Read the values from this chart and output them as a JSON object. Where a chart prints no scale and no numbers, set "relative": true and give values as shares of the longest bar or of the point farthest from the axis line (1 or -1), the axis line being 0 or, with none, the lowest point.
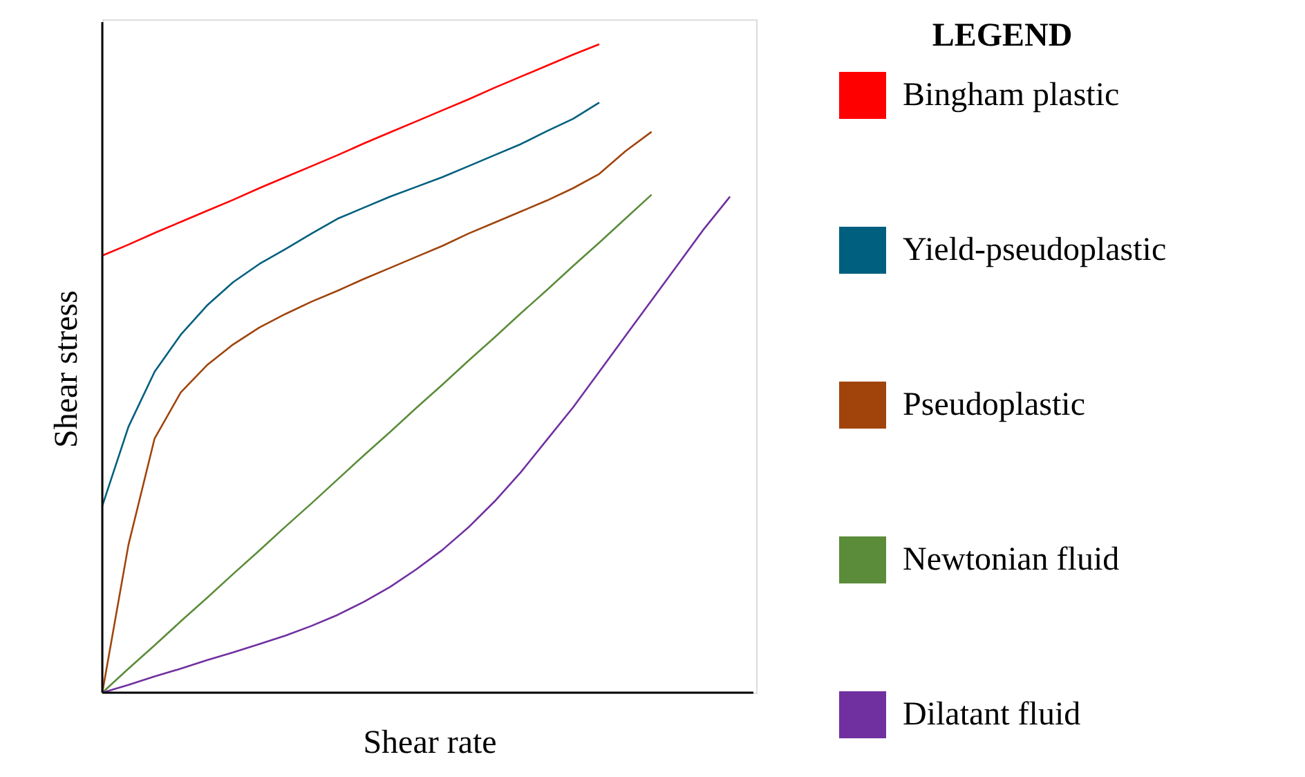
{
  "chart_data": {
    "type": "line",
    "relative": true,
    "xlabel": "Shear rate",
    "ylabel": "Shear stress",
    "legend_title": "LEGEND",
    "legend": "right",
    "grid": false,
    "marker": "none",
    "line_style": "solid",
    "categories": [
      null,
      null,
      null,
      null,
      null,
      null,
      null,
      null,
      null,
      null,
      null,
      null,
      null,
      null,
      null,
      null,
      null,
      null,
      null,
      null,
      null,
      null,
      null,
      null,
      null,
      null
    ],
    "series": [
      {
        "name": "Bingham plastic",
        "color": "#ff0000",
        "values": [
          0.674,
          0.691,
          0.709,
          0.726,
          0.743,
          0.76,
          0.778,
          0.795,
          0.812,
          0.829,
          0.847,
          0.864,
          0.881,
          0.898,
          0.915,
          0.933,
          0.95,
          0.967,
          0.984,
          1.0,
          null,
          null,
          null,
          null,
          null,
          null
        ]
      },
      {
        "name": "Yield-pseudoplastic",
        "color": "#005f7f",
        "values": [
          0.288,
          0.41,
          0.495,
          0.552,
          0.597,
          0.633,
          0.661,
          0.684,
          0.708,
          0.731,
          0.748,
          0.765,
          0.78,
          0.795,
          0.812,
          0.829,
          0.846,
          0.866,
          0.885,
          0.91,
          null,
          null,
          null,
          null,
          null,
          null
        ]
      },
      {
        "name": "Pseudoplastic",
        "color": "#a0440c",
        "values": [
          0,
          0.228,
          0.392,
          0.463,
          0.505,
          0.537,
          0.563,
          0.584,
          0.603,
          0.62,
          0.638,
          0.655,
          0.672,
          0.689,
          0.708,
          0.725,
          0.742,
          0.759,
          0.778,
          0.8,
          0.835,
          0.865,
          null,
          null,
          null,
          null
        ]
      },
      {
        "name": "Newtonian fluid",
        "color": "#5b8c3a",
        "values": [
          0,
          0.037,
          0.073,
          0.11,
          0.146,
          0.183,
          0.219,
          0.256,
          0.292,
          0.329,
          0.366,
          0.402,
          0.439,
          0.475,
          0.512,
          0.548,
          0.585,
          0.621,
          0.658,
          0.694,
          0.731,
          0.768,
          null,
          null,
          null,
          null
        ]
      },
      {
        "name": "Dilatant fluid",
        "color": "#7030a0",
        "values": [
          0,
          0.012,
          0.025,
          0.037,
          0.05,
          0.062,
          0.075,
          0.088,
          0.103,
          0.12,
          0.14,
          0.163,
          0.19,
          0.22,
          0.255,
          0.295,
          0.34,
          0.39,
          0.44,
          0.495,
          0.55,
          0.605,
          0.66,
          0.715,
          0.765,
          null
        ]
      }
    ]
  }
}
